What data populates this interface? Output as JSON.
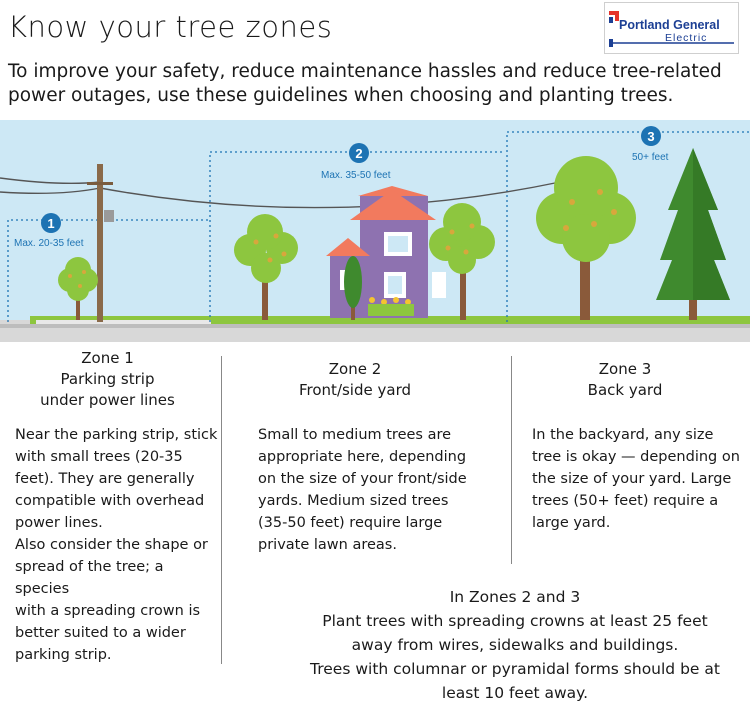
{
  "header": {
    "title": "Know your tree zones",
    "subtitle_line1": "To improve your safety, reduce maintenance hassles and reduce tree-related",
    "subtitle_line2": "power outages, use these guidelines when choosing and planting trees.",
    "logo_line1": "Portland General",
    "logo_line2": "Electric"
  },
  "illustration": {
    "markers": [
      {
        "number": "1",
        "label": "Max. 20-35 feet"
      },
      {
        "number": "2",
        "label": "Max. 35-50 feet"
      },
      {
        "number": "3",
        "label": "50+ feet"
      }
    ]
  },
  "zones": [
    {
      "heading": [
        "Zone 1",
        "Parking strip",
        "under power lines"
      ],
      "text": [
        "Near the parking strip, stick",
        "with small trees (20-35",
        "feet). They are generally",
        "compatible with overhead",
        "power lines.",
        "Also consider the shape or",
        "spread of the tree; a species",
        "with a spreading crown is",
        "better suited to a wider",
        "parking strip."
      ]
    },
    {
      "heading": [
        "Zone 2",
        "Front/side yard"
      ],
      "text": [
        "Small to medium trees are",
        "appropriate here, depending",
        "on the size of your front/side",
        "yards. Medium sized trees",
        "(35-50 feet) require large",
        "private lawn areas."
      ]
    },
    {
      "heading": [
        "Zone 3",
        "Back yard"
      ],
      "text": [
        "In the backyard, any size",
        "tree is okay — depending on",
        "the size of your yard. Large",
        "trees (50+ feet) require a",
        "large yard."
      ]
    }
  ],
  "zones23": {
    "heading": "In Zones 2 and 3",
    "lines": [
      "Plant trees with spreading crowns at least 25 feet",
      "away from wires, sidewalks and buildings.",
      "Trees with columnar or pyramidal forms should be at",
      "least 10 feet away."
    ]
  },
  "colors": {
    "sky": "#cde8f5",
    "grass": "#8dc63f",
    "marker": "#1d73b3",
    "house": "#8e72b0",
    "roof": "#f27a5e"
  }
}
